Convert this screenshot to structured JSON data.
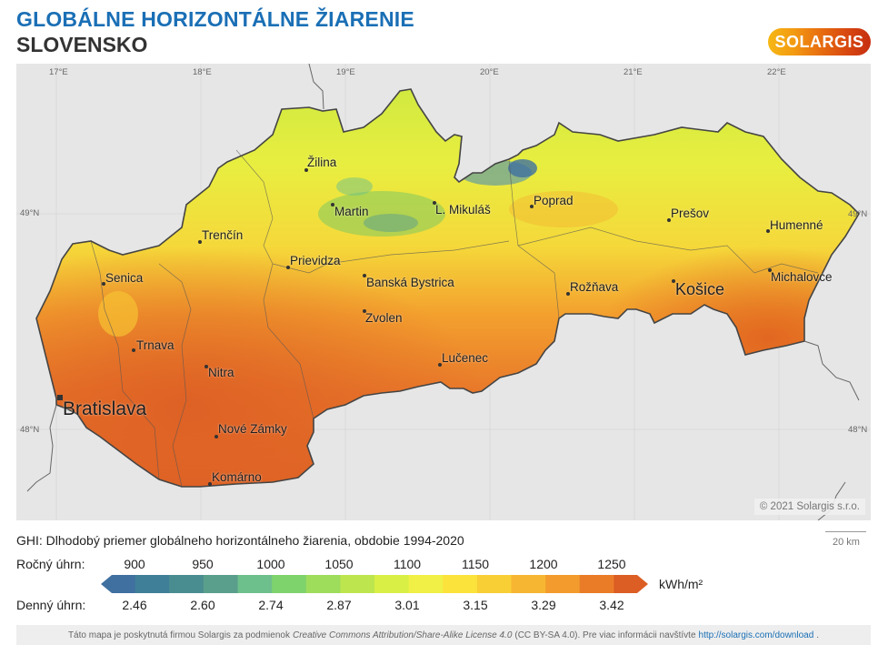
{
  "header": {
    "title": "GLOBÁLNE HORIZONTÁLNE ŽIARENIE",
    "subtitle": "SLOVENSKO",
    "logo_text": "SOLARGIS"
  },
  "map": {
    "longitude_labels": [
      "17°E",
      "18°E",
      "19°E",
      "20°E",
      "21°E",
      "22°E"
    ],
    "latitude_labels": {
      "n49_left": "49°N",
      "n49_right": "49°N",
      "n48_left": "48°N",
      "n48_right": "48°N"
    },
    "cities": [
      {
        "name": "Bratislava",
        "size": "xl"
      },
      {
        "name": "Senica",
        "size": "normal"
      },
      {
        "name": "Trnava",
        "size": "normal"
      },
      {
        "name": "Nitra",
        "size": "normal"
      },
      {
        "name": "Nové Zámky",
        "size": "normal"
      },
      {
        "name": "Komárno",
        "size": "normal"
      },
      {
        "name": "Trenčín",
        "size": "normal"
      },
      {
        "name": "Prievidza",
        "size": "normal"
      },
      {
        "name": "Žilina",
        "size": "normal"
      },
      {
        "name": "Martin",
        "size": "normal"
      },
      {
        "name": "Banská Bystrica",
        "size": "normal"
      },
      {
        "name": "Zvolen",
        "size": "normal"
      },
      {
        "name": "Lučenec",
        "size": "normal"
      },
      {
        "name": "L. Mikuláš",
        "size": "normal"
      },
      {
        "name": "Poprad",
        "size": "normal"
      },
      {
        "name": "Rožňava",
        "size": "normal"
      },
      {
        "name": "Košice",
        "size": "big"
      },
      {
        "name": "Prešov",
        "size": "normal"
      },
      {
        "name": "Humenné",
        "size": "normal"
      },
      {
        "name": "Michalovce",
        "size": "normal"
      }
    ],
    "copyright": "© 2021 Solargis s.r.o.",
    "scale_label": "20 km"
  },
  "legend": {
    "description": "GHI: Dlhodobý priemer globálneho horizontálneho žiarenia, obdobie 1994-2020",
    "annual_label": "Ročný úhrn:",
    "daily_label": "Denný úhrn:",
    "annual_ticks": [
      "900",
      "950",
      "1000",
      "1050",
      "1100",
      "1150",
      "1200",
      "1250"
    ],
    "daily_ticks": [
      "2.46",
      "2.60",
      "2.74",
      "2.87",
      "3.01",
      "3.15",
      "3.29",
      "3.42"
    ],
    "unit": "kWh/m²",
    "colors": [
      "#3f70a0",
      "#3f7f98",
      "#4a8d90",
      "#5a9e8c",
      "#6dbf8c",
      "#7fd36c",
      "#9edc5c",
      "#bde64e",
      "#d9ef46",
      "#f0f046",
      "#fbe33c",
      "#f9cf36",
      "#f7b632",
      "#f39b2c",
      "#ea7c28",
      "#dc5e24"
    ]
  },
  "footer": {
    "text_before": "Táto mapa je poskytnutá firmou Solargis za podmienok",
    "license_italic": "Creative Commons Attribution/Share-Alike License 4.0",
    "text_after": "(CC BY-SA 4.0). Pre viac informácii navštívte",
    "link": "http://solargis.com/download",
    "end": "."
  },
  "chart_data": {
    "type": "heatmap",
    "title": "GLOBÁLNE HORIZONTÁLNE ŽIARENIE — SLOVENSKO",
    "legend_annual_kwh_m2": [
      900,
      950,
      1000,
      1050,
      1100,
      1150,
      1200,
      1250
    ],
    "legend_daily_kwh_m2": [
      2.46,
      2.6,
      2.74,
      2.87,
      3.01,
      3.15,
      3.29,
      3.42
    ],
    "unit": "kWh/m²",
    "period": "1994-2020"
  }
}
